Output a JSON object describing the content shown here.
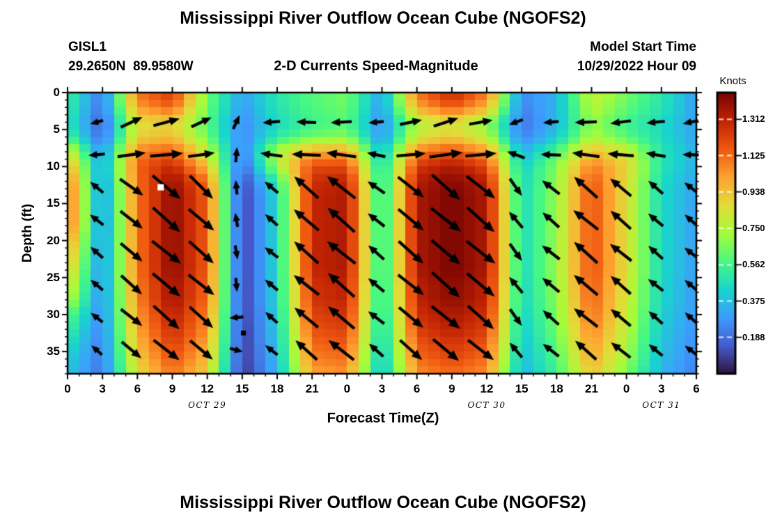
{
  "header": {
    "title": "Mississippi River Outflow Ocean Cube (NGOFS2)",
    "station_id": "GISL1",
    "coordinates": "29.2650N  89.9580W",
    "subtitle": "2-D Currents Speed-Magnitude",
    "model_start_label": "Model Start Time",
    "model_start_value": "10/29/2022 Hour 09"
  },
  "footer": {
    "next_panel_title": "Mississippi River Outflow Ocean Cube (NGOFS2)"
  },
  "chart_data": {
    "type": "heatmap",
    "title": "Mississippi River Outflow Ocean Cube (NGOFS2)",
    "subtitle": "2-D Currents Speed-Magnitude",
    "xlabel": "Forecast Time(Z)",
    "ylabel": "Depth (ft)",
    "x_hours_range": [
      0,
      54
    ],
    "x_tick_step_hours": 3,
    "x_tick_labels": [
      "0",
      "3",
      "6",
      "9",
      "12",
      "15",
      "18",
      "21",
      "0",
      "3",
      "6",
      "9",
      "12",
      "15",
      "18",
      "21",
      "0",
      "3",
      "6"
    ],
    "date_labels": [
      {
        "text": "OCT 29",
        "hour": 12
      },
      {
        "text": "OCT 30",
        "hour": 36
      },
      {
        "text": "OCT 31",
        "hour": 51
      }
    ],
    "depth_range_ft": [
      0,
      38
    ],
    "y_tick_values": [
      0,
      5,
      10,
      15,
      20,
      25,
      30,
      35
    ],
    "colorbar": {
      "label": "Knots",
      "min": 0,
      "max": 1.45,
      "ticks": [
        {
          "value": 1.312,
          "label": "1.312"
        },
        {
          "value": 1.125,
          "label": "1.125"
        },
        {
          "value": 0.938,
          "label": "0.938"
        },
        {
          "value": 0.75,
          "label": "0.750"
        },
        {
          "value": 0.562,
          "label": "0.562"
        },
        {
          "value": 0.375,
          "label": "0.375"
        },
        {
          "value": 0.188,
          "label": "0.188"
        }
      ]
    },
    "colormap": "turbo",
    "colormap_stops": [
      {
        "p": 0.0,
        "c": "#30123b"
      },
      {
        "p": 0.1,
        "c": "#455bcd"
      },
      {
        "p": 0.2,
        "c": "#3e9bfe"
      },
      {
        "p": 0.3,
        "c": "#18d6cb"
      },
      {
        "p": 0.4,
        "c": "#48f882"
      },
      {
        "p": 0.5,
        "c": "#a4fc3b"
      },
      {
        "p": 0.6,
        "c": "#e2dc38"
      },
      {
        "p": 0.7,
        "c": "#fea331"
      },
      {
        "p": 0.8,
        "c": "#ef5911"
      },
      {
        "p": 0.9,
        "c": "#c22403"
      },
      {
        "p": 1.0,
        "c": "#7a0403"
      }
    ],
    "grid": {
      "times_hours": [
        0,
        3,
        6,
        9,
        12,
        15,
        18,
        21,
        24,
        27,
        30,
        33,
        36,
        39,
        42,
        45,
        48,
        51,
        54
      ],
      "depths_ft": [
        0,
        2,
        4,
        6,
        8,
        10,
        12,
        14,
        16,
        18,
        20,
        22,
        24,
        26,
        28,
        30,
        32,
        34,
        36,
        38
      ],
      "speed_knots": [
        [
          0.55,
          0.2,
          1.1,
          1.25,
          0.65,
          0.3,
          0.5,
          0.6,
          0.65,
          0.3,
          1.1,
          1.3,
          1.1,
          0.25,
          0.35,
          0.8,
          0.65,
          0.5,
          0.3
        ],
        [
          0.54,
          0.19,
          1.03,
          1.15,
          0.64,
          0.29,
          0.49,
          0.59,
          0.64,
          0.29,
          1.0,
          1.17,
          0.98,
          0.24,
          0.35,
          0.77,
          0.62,
          0.49,
          0.3
        ],
        [
          0.5,
          0.15,
          0.85,
          0.9,
          0.6,
          0.25,
          0.45,
          0.55,
          0.6,
          0.25,
          0.75,
          0.85,
          0.7,
          0.2,
          0.35,
          0.7,
          0.55,
          0.45,
          0.3
        ],
        [
          0.57,
          0.17,
          0.9,
          0.95,
          0.64,
          0.24,
          0.51,
          0.64,
          0.68,
          0.27,
          0.82,
          0.92,
          0.77,
          0.23,
          0.4,
          0.75,
          0.6,
          0.46,
          0.31
        ],
        [
          0.84,
          0.26,
          1.08,
          1.16,
          0.79,
          0.21,
          0.75,
          1.0,
          1.01,
          0.36,
          1.09,
          1.19,
          1.04,
          0.35,
          0.58,
          0.96,
          0.81,
          0.49,
          0.34
        ],
        [
          1.01,
          0.29,
          1.14,
          1.3,
          0.94,
          0.16,
          0.73,
          1.2,
          1.21,
          0.42,
          1.25,
          1.35,
          1.21,
          0.42,
          0.67,
          1.1,
          0.89,
          0.49,
          0.34
        ],
        [
          1.12,
          0.26,
          1.11,
          1.4,
          1.11,
          0.1,
          0.51,
          1.28,
          1.32,
          0.44,
          1.33,
          1.43,
          1.32,
          0.44,
          0.69,
          1.18,
          0.86,
          0.46,
          0.31
        ],
        [
          1.15,
          0.25,
          1.1,
          1.42,
          1.15,
          0.08,
          0.45,
          1.3,
          1.35,
          0.45,
          1.35,
          1.45,
          1.35,
          0.45,
          0.7,
          1.2,
          0.85,
          0.45,
          0.3
        ],
        [
          1.15,
          0.25,
          1.1,
          1.42,
          1.15,
          0.08,
          0.45,
          1.3,
          1.35,
          0.45,
          1.35,
          1.45,
          1.35,
          0.45,
          0.7,
          1.2,
          0.85,
          0.45,
          0.3
        ],
        [
          1.15,
          0.25,
          1.1,
          1.42,
          1.15,
          0.08,
          0.45,
          1.3,
          1.35,
          0.45,
          1.35,
          1.45,
          1.35,
          0.45,
          0.7,
          1.2,
          0.85,
          0.45,
          0.3
        ],
        [
          1.05,
          0.25,
          1.1,
          1.42,
          1.15,
          0.08,
          0.45,
          1.3,
          1.35,
          0.45,
          1.35,
          1.45,
          1.35,
          0.45,
          0.7,
          1.2,
          0.85,
          0.45,
          0.3
        ],
        [
          1.0,
          0.25,
          1.1,
          1.42,
          1.15,
          0.08,
          0.45,
          1.3,
          1.35,
          0.45,
          1.35,
          1.45,
          1.35,
          0.45,
          0.7,
          1.2,
          0.85,
          0.45,
          0.3
        ],
        [
          0.92,
          0.25,
          1.1,
          1.42,
          1.15,
          0.08,
          0.45,
          1.3,
          1.35,
          0.45,
          1.35,
          1.45,
          1.35,
          0.45,
          0.7,
          1.2,
          0.85,
          0.45,
          0.3
        ],
        [
          0.85,
          0.25,
          1.08,
          1.39,
          1.13,
          0.08,
          0.44,
          1.27,
          1.32,
          0.44,
          1.32,
          1.42,
          1.32,
          0.44,
          0.69,
          1.18,
          0.83,
          0.44,
          0.29
        ],
        [
          0.78,
          0.24,
          1.07,
          1.38,
          1.12,
          0.08,
          0.44,
          1.26,
          1.31,
          0.44,
          1.31,
          1.41,
          1.31,
          0.44,
          0.68,
          1.16,
          0.82,
          0.44,
          0.29
        ],
        [
          0.62,
          0.24,
          1.03,
          1.33,
          1.08,
          0.08,
          0.42,
          1.22,
          1.27,
          0.42,
          1.27,
          1.36,
          1.27,
          0.42,
          0.66,
          1.13,
          0.8,
          0.42,
          0.28
        ],
        [
          0.55,
          0.23,
          1.0,
          1.29,
          1.05,
          0.07,
          0.41,
          1.18,
          1.23,
          0.41,
          1.23,
          1.32,
          1.23,
          0.41,
          0.64,
          1.09,
          0.77,
          0.41,
          0.27
        ],
        [
          0.48,
          0.22,
          0.96,
          1.24,
          1.0,
          0.07,
          0.39,
          1.13,
          1.17,
          0.39,
          1.17,
          1.26,
          1.17,
          0.39,
          0.61,
          1.04,
          0.74,
          0.39,
          0.26
        ],
        [
          0.42,
          0.21,
          0.91,
          1.18,
          0.95,
          0.07,
          0.37,
          1.08,
          1.12,
          0.37,
          1.12,
          1.2,
          1.12,
          0.37,
          0.58,
          1.0,
          0.71,
          0.37,
          0.25
        ],
        [
          0.4,
          0.2,
          0.86,
          1.11,
          0.9,
          0.06,
          0.35,
          1.01,
          1.05,
          0.35,
          1.05,
          1.13,
          1.05,
          0.35,
          0.55,
          0.94,
          0.66,
          0.35,
          0.23
        ]
      ]
    },
    "arrows": {
      "times_hours": [
        2.5,
        5.5,
        8.5,
        11.5,
        14.5,
        17.5,
        20.5,
        23.5,
        26.5,
        29.5,
        32.5,
        35.5,
        38.5,
        41.5,
        44.5,
        47.5,
        50.5,
        53.5
      ],
      "depths_ft": [
        4.0,
        8.4,
        12.8,
        17.2,
        21.6,
        26.0,
        30.4,
        34.8
      ],
      "angles_deg": [
        [
          195,
          25,
          15,
          25,
          65,
          185,
          178,
          183,
          185,
          12,
          18,
          10,
          200,
          185,
          182,
          188,
          185,
          192
        ],
        [
          185,
          8,
          5,
          8,
          85,
          172,
          178,
          172,
          168,
          5,
          8,
          5,
          160,
          178,
          172,
          175,
          170,
          178
        ],
        [
          140,
          -35,
          -40,
          -45,
          95,
          140,
          138,
          142,
          145,
          -38,
          -42,
          -38,
          -55,
          142,
          138,
          140,
          138,
          142
        ],
        [
          142,
          -38,
          -42,
          -40,
          100,
          138,
          140,
          138,
          142,
          -40,
          -38,
          -42,
          130,
          138,
          142,
          138,
          140,
          138
        ],
        [
          138,
          -40,
          -38,
          -42,
          -80,
          142,
          138,
          142,
          138,
          -42,
          -40,
          -38,
          -55,
          142,
          138,
          142,
          138,
          142
        ],
        [
          140,
          -42,
          -40,
          -38,
          -85,
          140,
          142,
          138,
          140,
          -38,
          -42,
          -40,
          130,
          140,
          140,
          138,
          142,
          140
        ],
        [
          142,
          -38,
          -42,
          -42,
          185,
          138,
          140,
          140,
          142,
          -40,
          -38,
          -42,
          -55,
          138,
          142,
          140,
          138,
          138
        ],
        [
          138,
          -40,
          -38,
          -40,
          -15,
          142,
          138,
          142,
          138,
          -42,
          -40,
          -38,
          130,
          142,
          138,
          142,
          140,
          142
        ]
      ]
    },
    "markers": [
      {
        "type": "white-square",
        "hour": 8.0,
        "depth_ft": 12.8
      },
      {
        "type": "black-square",
        "hour": 15.1,
        "depth_ft": 32.5
      }
    ]
  }
}
